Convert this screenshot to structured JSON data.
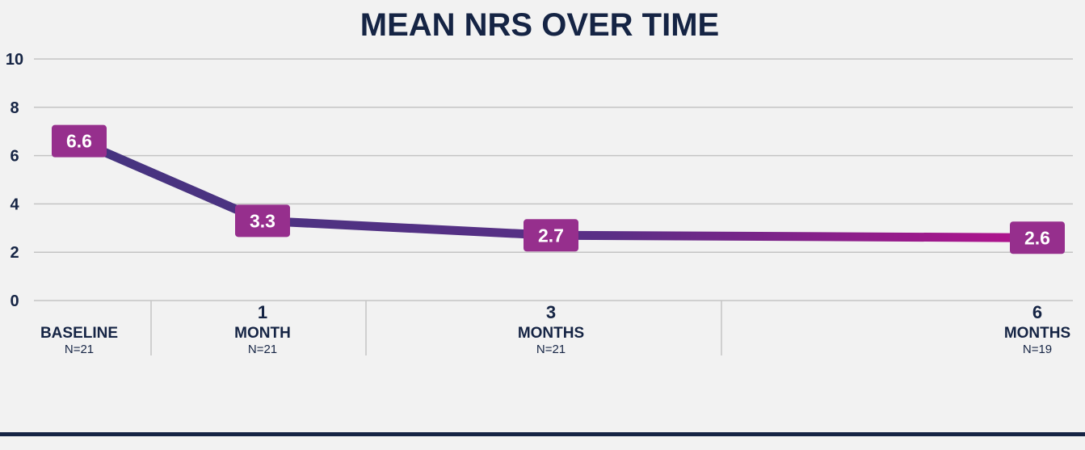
{
  "chart_data": {
    "type": "line",
    "title": "MEAN NRS OVER TIME",
    "ylim": [
      0,
      10
    ],
    "yticks": [
      0,
      2,
      4,
      6,
      8,
      10
    ],
    "grid": true,
    "categories": [
      {
        "top": "",
        "mid": "BASELINE",
        "n": "N=21"
      },
      {
        "top": "1",
        "mid": "MONTH",
        "n": "N=21"
      },
      {
        "top": "3",
        "mid": "MONTHS",
        "n": "N=21"
      },
      {
        "top": "6",
        "mid": "MONTHS",
        "n": "N=19"
      }
    ],
    "x_months": [
      0,
      1,
      3,
      6
    ],
    "series": [
      {
        "values": [
          6.6,
          3.3,
          2.7,
          2.6
        ],
        "data_labels": [
          "6.6",
          "3.3",
          "2.7",
          "2.6"
        ]
      }
    ]
  },
  "colors": {
    "text": "#152444",
    "line_start": "#45347f",
    "line_end": "#b3128d",
    "label_box": "#962f8d",
    "grid": "#c4c4c4",
    "background": "#f2f2f2"
  }
}
